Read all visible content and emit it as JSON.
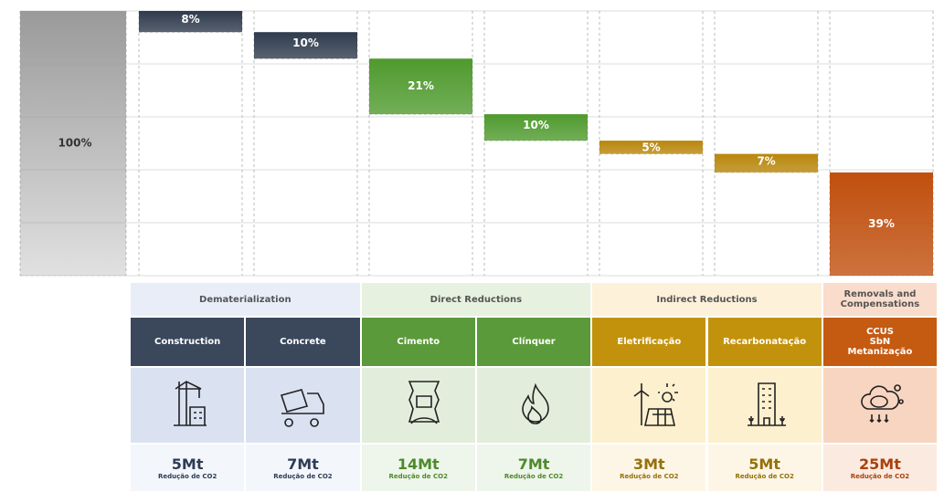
{
  "chart_data": {
    "type": "waterfall",
    "values": [
      100,
      8,
      10,
      21,
      10,
      5,
      7,
      39
    ],
    "value_labels": [
      "100%",
      "8%",
      "10%",
      "21%",
      "10%",
      "5%",
      "7%",
      "39%"
    ],
    "colors": [
      "#9a9a9a",
      "#2f3b4d",
      "#2f3b4d",
      "#4f9a2e",
      "#4f9a2e",
      "#b8860b",
      "#b8860b",
      "#c04f0e"
    ],
    "ylim": [
      0,
      100
    ],
    "yticks": [
      0,
      20,
      40,
      60,
      80,
      100
    ],
    "grid": true
  },
  "table": {
    "groups": [
      {
        "label": "Dematerialization",
        "span": 2
      },
      {
        "label": "Direct Reductions",
        "span": 2
      },
      {
        "label": "Indirect Reductions",
        "span": 2
      },
      {
        "label": "Removals and\nCompensations",
        "span": 1
      }
    ],
    "columns": [
      {
        "name": "Construction",
        "amount": "5Mt",
        "caption": "Redução de CO2"
      },
      {
        "name": "Concrete",
        "amount": "7Mt",
        "caption": "Redução de CO2"
      },
      {
        "name": "Cimento",
        "amount": "14Mt",
        "caption": "Redução de CO2"
      },
      {
        "name": "Clínquer",
        "amount": "7Mt",
        "caption": "Redução de CO2"
      },
      {
        "name": "Eletrificação",
        "amount": "3Mt",
        "caption": "Redução de CO2"
      },
      {
        "name": "Recarbonatação",
        "amount": "5Mt",
        "caption": "Redução de CO2"
      },
      {
        "name": "CCUS\nSbN\nMetanização",
        "amount": "25Mt",
        "caption": "Redução de CO2"
      }
    ]
  }
}
